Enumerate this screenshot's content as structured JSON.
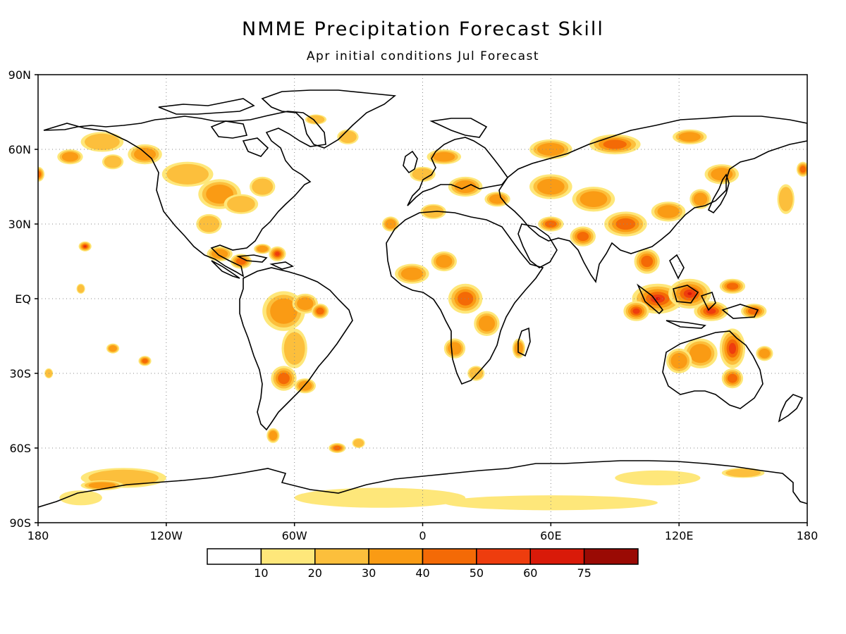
{
  "title": "NMME Precipitation Forecast Skill",
  "subtitle": "Apr initial conditions  Jul Forecast",
  "lat_labels": [
    "90N",
    "60N",
    "30N",
    "EQ",
    "30S",
    "60S",
    "90S"
  ],
  "lon_labels": [
    "180",
    "120W",
    "60W",
    "0",
    "60E",
    "120E",
    "180"
  ],
  "colorbar": {
    "labels": [
      "10",
      "20",
      "30",
      "40",
      "50",
      "60",
      "75"
    ],
    "colors": [
      "#ffffff",
      "#fee77a",
      "#fcbf3c",
      "#fa9b14",
      "#f46a06",
      "#ee3d0e",
      "#d91a09",
      "#9a0a04"
    ]
  },
  "grid": {
    "style": "dotted",
    "lat_lines": [
      "60N",
      "30N",
      "EQ",
      "30S",
      "60S"
    ],
    "lon_lines": [
      "120W",
      "60W",
      "0",
      "60E",
      "120E"
    ]
  },
  "chart_data": {
    "type": "heatmap",
    "title": "NMME Precipitation Forecast Skill",
    "subtitle": "Apr initial conditions  Jul Forecast",
    "x_range": [
      -180,
      180
    ],
    "y_range": [
      -90,
      90
    ],
    "levels": [
      10,
      20,
      30,
      40,
      50,
      60,
      75
    ],
    "regions": [
      {
        "name": "Maritime Continent",
        "lon": [
          100,
          140
        ],
        "lat": [
          -10,
          10
        ],
        "level": 60
      },
      {
        "name": "Eastern Australia",
        "lon": [
          140,
          155
        ],
        "lat": [
          -35,
          -15
        ],
        "level": 50
      },
      {
        "name": "Central Pacific islands",
        "lon": [
          -165,
          -155
        ],
        "lat": [
          18,
          24
        ],
        "level": 60
      },
      {
        "name": "Caribbean",
        "lon": [
          -70,
          -60
        ],
        "lat": [
          15,
          22
        ],
        "level": 50
      },
      {
        "name": "Central Africa",
        "lon": [
          10,
          30
        ],
        "lat": [
          -10,
          5
        ],
        "level": 40
      },
      {
        "name": "Antarctic coast",
        "lon": [
          -180,
          120
        ],
        "lat": [
          -90,
          -75
        ],
        "level": 10
      }
    ]
  }
}
